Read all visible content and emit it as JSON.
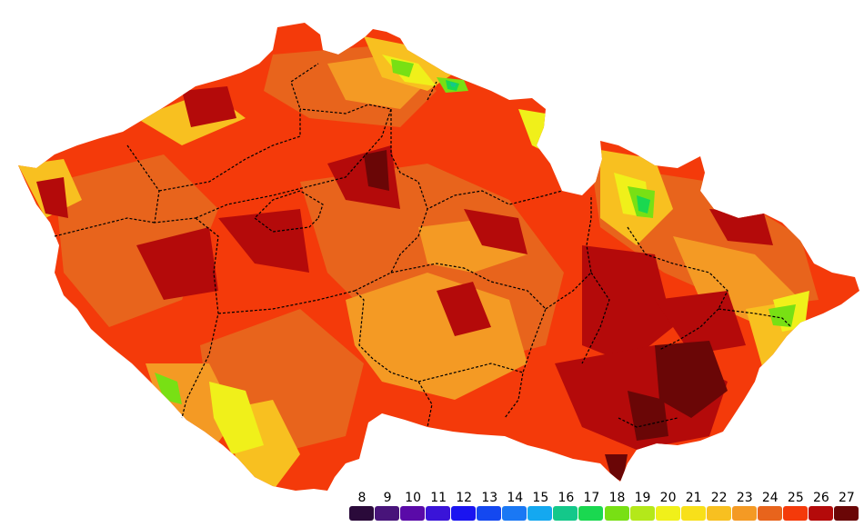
{
  "legend": {
    "entries": [
      {
        "label": "8",
        "color": "#2a0a3a"
      },
      {
        "label": "9",
        "color": "#48147a"
      },
      {
        "label": "10",
        "color": "#5a0aa8"
      },
      {
        "label": "11",
        "color": "#3a14d8"
      },
      {
        "label": "12",
        "color": "#1a14f0"
      },
      {
        "label": "13",
        "color": "#1448f0"
      },
      {
        "label": "14",
        "color": "#1a78f4"
      },
      {
        "label": "15",
        "color": "#14a8f0"
      },
      {
        "label": "16",
        "color": "#14c88a"
      },
      {
        "label": "17",
        "color": "#1ad850"
      },
      {
        "label": "18",
        "color": "#78e014"
      },
      {
        "label": "19",
        "color": "#b4e81a"
      },
      {
        "label": "20",
        "color": "#f0f01a"
      },
      {
        "label": "21",
        "color": "#f8e01a"
      },
      {
        "label": "22",
        "color": "#f8c020"
      },
      {
        "label": "23",
        "color": "#f49a24"
      },
      {
        "label": "24",
        "color": "#e8641c"
      },
      {
        "label": "25",
        "color": "#f43a0a"
      },
      {
        "label": "26",
        "color": "#b40a0a"
      },
      {
        "label": "27",
        "color": "#6a0606"
      }
    ]
  },
  "map_palette": {
    "yellow": "#f0f01a",
    "yellow_orange": "#f8c020",
    "light_orange": "#f49a24",
    "orange": "#e8641c",
    "red_orange": "#f43a0a",
    "dark_red": "#b40a0a",
    "maroon": "#6a0606",
    "green": "#78e014",
    "bright_green": "#1ad850",
    "cyan": "#14c88a",
    "border": "#000000"
  }
}
